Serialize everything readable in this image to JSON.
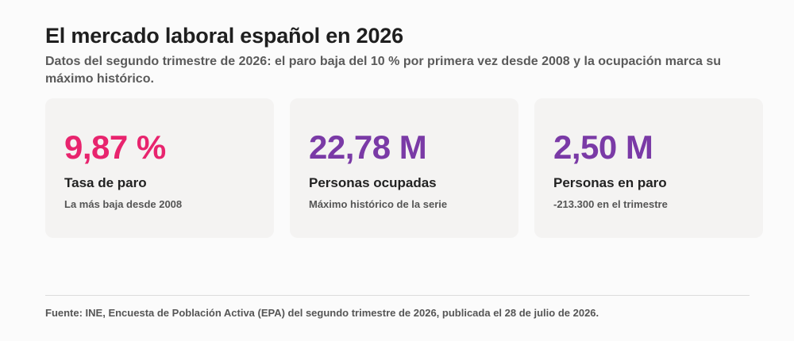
{
  "header": {
    "title": "El mercado laboral español en 2026",
    "subtitle": "Datos del segundo trimestre de 2026: el paro baja del 10 % por primera vez desde 2008 y la ocupación marca su máximo histórico."
  },
  "cards": [
    {
      "value": "9,87 %",
      "label": "Tasa de paro",
      "note": "La más baja desde 2008",
      "value_color": "#e8246e"
    },
    {
      "value": "22,78 M",
      "label": "Personas ocupadas",
      "note": "Máximo histórico de la serie",
      "value_color": "#7a3aa6"
    },
    {
      "value": "2,50 M",
      "label": "Personas en paro",
      "note": "-213.300 en el trimestre",
      "value_color": "#7a3aa6"
    }
  ],
  "footer": {
    "source": "Fuente: INE, Encuesta de Población Activa (EPA) del segundo trimestre de 2026, publicada el 28 de julio de 2026."
  }
}
